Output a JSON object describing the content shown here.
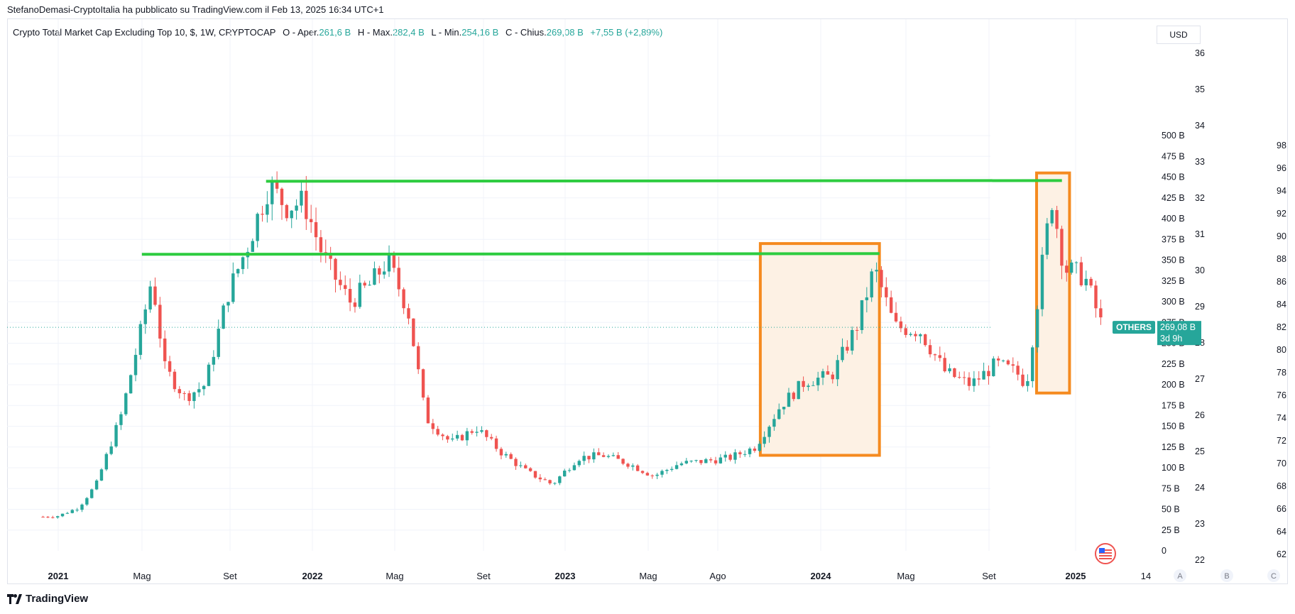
{
  "header": {
    "publisher_line": "StefanoDemasi-CryptoItalia ha pubblicato su TradingView.com il Feb 13, 2025 16:34 UTC+1"
  },
  "legend": {
    "symbol": "Crypto Total Market Cap Excluding Top 10, $, 1W, CRYPTOCAP",
    "open_label": "O - Aper.",
    "open_value": "261,6 B",
    "high_label": "H - Max.",
    "high_value": "282,4 B",
    "low_label": "L - Min.",
    "low_value": "254,16 B",
    "close_label": "C - Chius.",
    "close_value": "269,08 B",
    "change_value": "+7,55 B (+2,89%)"
  },
  "currency_button": "USD",
  "price_badge": {
    "symbol": "OTHERS",
    "price": "269,08 B",
    "countdown": "3d 9h",
    "color": "#26a69a"
  },
  "scale_buttons": [
    "A",
    "B",
    "C"
  ],
  "footer": {
    "brand": "TradingView"
  },
  "flag_icon": "us-flag-icon",
  "colors": {
    "up": "#26a69a",
    "down": "#ef5350",
    "level": "#2ecc40",
    "box": "#f58a1f",
    "box_fill": "#fdf1e4"
  },
  "chart_data": {
    "type": "candlestick",
    "title": "Crypto Total Market Cap Excluding Top 10, $, 1W, CRYPTOCAP",
    "x_tick_labels": [
      "2021",
      "Mag",
      "Set",
      "2022",
      "Mag",
      "Set",
      "2023",
      "Mag",
      "Ago",
      "2024",
      "Mag",
      "Set",
      "2025",
      "14"
    ],
    "y_tick_labels": [
      "0",
      "25 B",
      "50 B",
      "75 B",
      "100 B",
      "125 B",
      "150 B",
      "175 B",
      "200 B",
      "225 B",
      "250 B",
      "275 B",
      "300 B",
      "325 B",
      "350 B",
      "375 B",
      "400 B",
      "425 B",
      "450 B",
      "475 B",
      "500 B"
    ],
    "y_range_billion": [
      0,
      500
    ],
    "secondary_axis_1_labels": [
      "22",
      "23",
      "24",
      "25",
      "26",
      "27",
      "28",
      "29",
      "30",
      "31",
      "32",
      "33",
      "34",
      "35",
      "36"
    ],
    "secondary_axis_2_labels": [
      "62",
      "64",
      "66",
      "68",
      "70",
      "72",
      "74",
      "76",
      "78",
      "80",
      "82",
      "84",
      "86",
      "88",
      "90",
      "92",
      "94",
      "96",
      "98"
    ],
    "last_close_billion": 269.08,
    "approx_close_path_billion": [
      [
        2020.94,
        41
      ],
      [
        2021.0,
        42
      ],
      [
        2021.08,
        52
      ],
      [
        2021.15,
        80
      ],
      [
        2021.25,
        165
      ],
      [
        2021.33,
        270
      ],
      [
        2021.37,
        330
      ],
      [
        2021.42,
        220
      ],
      [
        2021.5,
        185
      ],
      [
        2021.58,
        200
      ],
      [
        2021.67,
        310
      ],
      [
        2021.75,
        370
      ],
      [
        2021.83,
        440
      ],
      [
        2021.9,
        415
      ],
      [
        2021.97,
        420
      ],
      [
        2022.05,
        350
      ],
      [
        2022.15,
        300
      ],
      [
        2022.23,
        320
      ],
      [
        2022.3,
        350
      ],
      [
        2022.38,
        290
      ],
      [
        2022.45,
        160
      ],
      [
        2022.55,
        130
      ],
      [
        2022.65,
        148
      ],
      [
        2022.75,
        118
      ],
      [
        2022.85,
        95
      ],
      [
        2022.95,
        80
      ],
      [
        2023.05,
        112
      ],
      [
        2023.15,
        115
      ],
      [
        2023.25,
        105
      ],
      [
        2023.35,
        90
      ],
      [
        2023.45,
        105
      ],
      [
        2023.55,
        108
      ],
      [
        2023.65,
        112
      ],
      [
        2023.75,
        125
      ],
      [
        2023.85,
        175
      ],
      [
        2023.95,
        205
      ],
      [
        2024.05,
        210
      ],
      [
        2024.15,
        270
      ],
      [
        2024.22,
        340
      ],
      [
        2024.3,
        270
      ],
      [
        2024.4,
        265
      ],
      [
        2024.5,
        215
      ],
      [
        2024.6,
        200
      ],
      [
        2024.7,
        225
      ],
      [
        2024.78,
        215
      ],
      [
        2024.82,
        200
      ],
      [
        2024.88,
        340
      ],
      [
        2024.92,
        425
      ],
      [
        2024.97,
        340
      ],
      [
        2025.05,
        330
      ],
      [
        2025.12,
        269
      ]
    ],
    "horizontal_levels_billion": [
      {
        "value": 445,
        "from": 2021.82,
        "to": 2024.96
      },
      {
        "value": 357,
        "from": 2021.33,
        "to": 2024.24
      }
    ],
    "highlight_boxes_billion": [
      {
        "x_from": 2023.77,
        "x_to": 2024.24,
        "y_from": 115,
        "y_to": 370
      },
      {
        "x_from": 2024.86,
        "x_to": 2024.99,
        "y_from": 190,
        "y_to": 455
      }
    ],
    "grid": true
  }
}
